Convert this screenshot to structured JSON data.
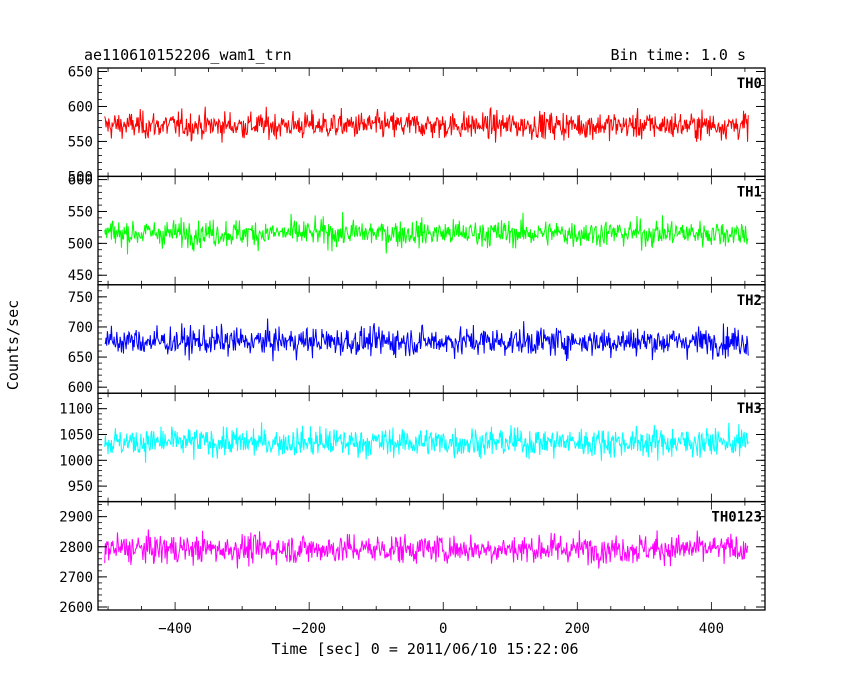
{
  "header": {
    "file_label": "ae110610152206_wam1_trn",
    "bin_label": "Bin time: 1.0 s"
  },
  "chart_data": {
    "type": "line",
    "title": "ae110610152206_wam1_trn",
    "subtitle": "Bin time: 1.0 s",
    "xlabel": "Time [sec] 0 = 2011/06/10 15:22:06",
    "ylabel": "Counts/sec",
    "xlim": [
      -515,
      480
    ],
    "data_x_range": [
      -505,
      455
    ],
    "bin_time_s": 1.0,
    "xticks": [
      -400,
      -200,
      0,
      200,
      400
    ],
    "xtick_labels": [
      "−400",
      "−200",
      "0",
      "200",
      "400"
    ],
    "grid": false,
    "legend": "none",
    "series": [
      {
        "name": "TH0",
        "color": "#ff0000",
        "ylim": [
          500,
          655
        ],
        "yticks": [
          500,
          550,
          600,
          650
        ],
        "ytick_labels": [
          "500",
          "550",
          "600",
          "650"
        ],
        "mean": 573,
        "noise": 22
      },
      {
        "name": "TH1",
        "color": "#00ff00",
        "ylim": [
          435,
          605
        ],
        "yticks": [
          450,
          500,
          550,
          600
        ],
        "ytick_labels": [
          "450",
          "500",
          "550",
          "600"
        ],
        "mean": 516,
        "noise": 24
      },
      {
        "name": "TH2",
        "color": "#0000ff",
        "ylim": [
          590,
          770
        ],
        "yticks": [
          600,
          650,
          700,
          750
        ],
        "ytick_labels": [
          "600",
          "650",
          "700",
          "750"
        ],
        "mean": 676,
        "noise": 27
      },
      {
        "name": "TH3",
        "color": "#00ffff",
        "ylim": [
          920,
          1130
        ],
        "yticks": [
          950,
          1000,
          1050,
          1100
        ],
        "ytick_labels": [
          "950",
          "1000",
          "1050",
          "1100"
        ],
        "mean": 1035,
        "noise": 32
      },
      {
        "name": "TH0123",
        "color": "#ff00ff",
        "ylim": [
          2590,
          2950
        ],
        "yticks": [
          2600,
          2700,
          2800,
          2900
        ],
        "ytick_labels": [
          "2600",
          "2700",
          "2800",
          "2900"
        ],
        "mean": 2793,
        "noise": 55
      }
    ]
  }
}
